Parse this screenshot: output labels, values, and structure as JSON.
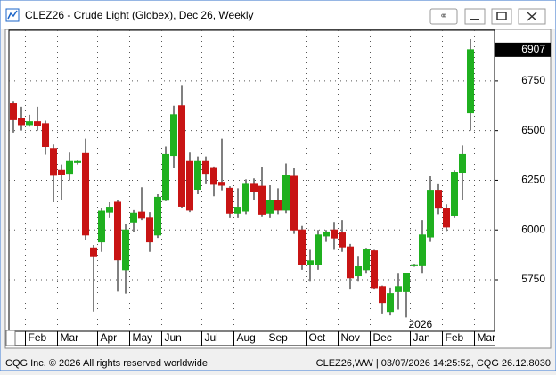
{
  "window": {
    "footer_left": "CQG Inc. © 2026 All rights reserved worldwide",
    "footer_right": "CLEZ26,WW | 03/07/2026 14:25:52, CQG 26.12.8030"
  },
  "chart_data": {
    "type": "candlestick",
    "title": "CLEZ26 - Crude Light (Globex), Dec 26, Weekly",
    "categories": [
      null,
      null,
      "Feb",
      null,
      null,
      null,
      "Mar",
      null,
      null,
      null,
      null,
      "Apr",
      null,
      null,
      null,
      "May",
      null,
      null,
      null,
      "Jun",
      null,
      null,
      null,
      null,
      "Jul",
      null,
      null,
      null,
      "Aug",
      null,
      null,
      null,
      "Sep",
      null,
      null,
      null,
      null,
      "Oct",
      null,
      null,
      null,
      "Nov",
      null,
      null,
      null,
      "Dec",
      null,
      null,
      null,
      null,
      "Jan",
      null,
      null,
      null,
      "Feb",
      null,
      null,
      null,
      "Mar"
    ],
    "open": [
      6635,
      6560,
      6530,
      6545,
      6535,
      6410,
      6300,
      6285,
      6340,
      6385,
      5910,
      5940,
      6090,
      6140,
      5800,
      6040,
      6090,
      6060,
      5975,
      6150,
      6375,
      6625,
      6345,
      6205,
      6345,
      6310,
      6240,
      6210,
      6085,
      6095,
      6230,
      6220,
      6085,
      6150,
      6100,
      6270,
      6000,
      5825,
      5825,
      5970,
      6000,
      5985,
      5915,
      5770,
      5800,
      5895,
      5715,
      5590,
      5690,
      5690,
      5820,
      5820,
      5965,
      6200,
      6110,
      6075,
      6290,
      6590,
      null
    ],
    "high": [
      6650,
      6620,
      6580,
      6620,
      6550,
      6430,
      6330,
      6390,
      6350,
      6460,
      5925,
      6110,
      6140,
      6150,
      6030,
      6100,
      6215,
      6090,
      6180,
      6420,
      6625,
      6730,
      6390,
      6370,
      6370,
      6320,
      6460,
      6220,
      6210,
      6255,
      6260,
      6315,
      6225,
      6210,
      6335,
      6310,
      6020,
      5900,
      6000,
      6000,
      6040,
      6050,
      5930,
      5870,
      5910,
      5900,
      5720,
      5710,
      5780,
      5780,
      5830,
      6050,
      6270,
      6230,
      6130,
      6300,
      6425,
      6960,
      null
    ],
    "low": [
      6490,
      6500,
      6520,
      6500,
      6380,
      6140,
      6150,
      6250,
      6330,
      5950,
      5590,
      5890,
      6060,
      5690,
      5680,
      5990,
      6050,
      5890,
      5960,
      6145,
      6310,
      6110,
      6090,
      6180,
      6230,
      6170,
      6200,
      6060,
      6060,
      6080,
      6150,
      6065,
      6060,
      6080,
      6085,
      5980,
      5800,
      5740,
      5800,
      5940,
      5900,
      5890,
      5700,
      5740,
      5780,
      5700,
      5580,
      5570,
      5600,
      5560,
      5815,
      5780,
      5940,
      6080,
      5995,
      6060,
      6150,
      6500,
      null
    ],
    "close": [
      6555,
      6530,
      6545,
      6525,
      6420,
      6275,
      6280,
      6345,
      6345,
      5975,
      5870,
      6095,
      6115,
      5850,
      6000,
      6085,
      6060,
      5940,
      6165,
      6380,
      6580,
      6120,
      6100,
      6345,
      6285,
      6230,
      6225,
      6085,
      6115,
      6230,
      6195,
      6080,
      6150,
      6100,
      6275,
      6000,
      5825,
      5845,
      5975,
      5990,
      5960,
      5915,
      5760,
      5815,
      5900,
      5710,
      5635,
      5680,
      5715,
      5780,
      5825,
      5975,
      6200,
      6110,
      6015,
      6290,
      6380,
      6907,
      null
    ],
    "up_color": "#1fb01f",
    "down_color": "#c81414",
    "ylim": [
      5490,
      7005
    ],
    "yticks": [
      5750,
      6000,
      6250,
      6500,
      6750
    ],
    "grid": true,
    "last_price": 6907,
    "year_label": "2026"
  }
}
